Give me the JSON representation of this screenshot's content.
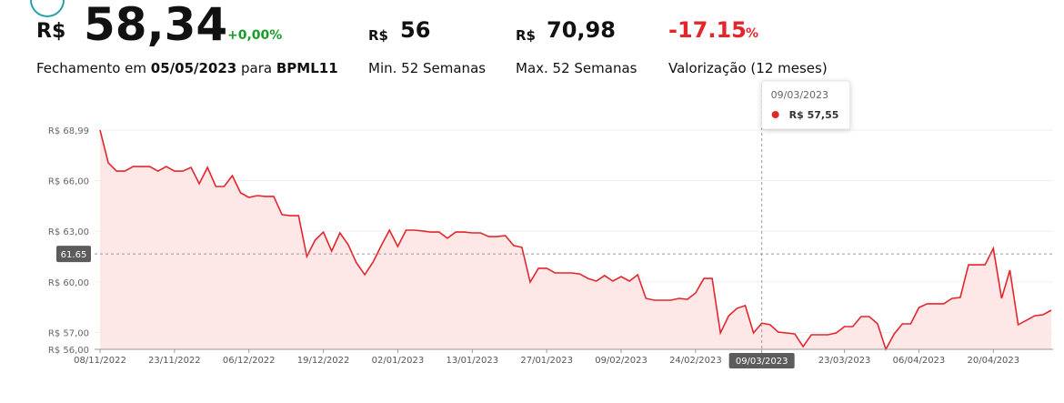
{
  "header": {
    "currency": "R$",
    "price": "58,34",
    "change": "+0,00%",
    "min_currency": "R$",
    "min_value": "56",
    "max_currency": "R$",
    "max_value": "70,98",
    "valuation": "-17.15",
    "valuation_unit": "%",
    "close_prefix": "Fechamento em",
    "close_date": "05/05/2023",
    "close_mid": "para",
    "ticker": "BPML11",
    "min_label": "Min. 52 Semanas",
    "max_label": "Max. 52 Semanas",
    "valuation_label": "Valorização (12 meses)"
  },
  "chart_data": {
    "type": "area",
    "color": "#e3262c",
    "fill": "#fde7e7",
    "grid": true,
    "categories": [
      "08/11/2022",
      null,
      null,
      null,
      null,
      null,
      null,
      null,
      null,
      "23/11/2022",
      null,
      null,
      null,
      null,
      null,
      null,
      null,
      null,
      "06/12/2022",
      null,
      null,
      null,
      null,
      null,
      null,
      null,
      null,
      "19/12/2022",
      null,
      null,
      null,
      null,
      null,
      null,
      null,
      null,
      "02/01/2023",
      null,
      null,
      null,
      null,
      null,
      null,
      null,
      null,
      "13/01/2023",
      null,
      null,
      null,
      null,
      null,
      null,
      null,
      null,
      "27/01/2023",
      null,
      null,
      null,
      null,
      null,
      null,
      null,
      null,
      "09/02/2023",
      null,
      null,
      null,
      null,
      null,
      null,
      null,
      null,
      "24/02/2023",
      null,
      null,
      null,
      null,
      null,
      null,
      null,
      "09/03/2023",
      null,
      null,
      null,
      null,
      null,
      null,
      null,
      null,
      null,
      "23/03/2023",
      null,
      null,
      null,
      null,
      null,
      null,
      null,
      null,
      "06/04/2023",
      null,
      null,
      null,
      null,
      null,
      null,
      null,
      null,
      "20/04/2023",
      null,
      null,
      null,
      null,
      null,
      null,
      null
    ],
    "values": [
      68.99,
      67.05,
      66.56,
      66.56,
      66.83,
      66.83,
      66.83,
      66.56,
      66.83,
      66.56,
      66.56,
      66.78,
      65.81,
      66.78,
      65.65,
      65.65,
      66.29,
      65.27,
      65.0,
      65.11,
      65.06,
      65.06,
      63.98,
      63.92,
      63.92,
      61.5,
      62.47,
      62.95,
      61.82,
      62.9,
      62.2,
      61.12,
      60.42,
      61.17,
      62.15,
      63.06,
      62.09,
      63.06,
      63.06,
      63.01,
      62.95,
      62.95,
      62.58,
      62.95,
      62.95,
      62.9,
      62.9,
      62.68,
      62.68,
      62.74,
      62.15,
      62.04,
      59.99,
      60.8,
      60.8,
      60.53,
      60.53,
      60.53,
      60.47,
      60.2,
      60.04,
      60.37,
      60.04,
      60.31,
      60.04,
      60.42,
      59.02,
      58.91,
      58.91,
      58.91,
      59.02,
      58.96,
      59.34,
      60.2,
      60.2,
      56.97,
      57.99,
      58.43,
      58.59,
      56.97,
      57.55,
      57.46,
      57.02,
      56.97,
      56.91,
      56.16,
      56.86,
      56.86,
      56.86,
      56.97,
      57.35,
      57.35,
      57.94,
      57.94,
      57.51,
      56.0,
      56.91,
      57.51,
      57.51,
      58.48,
      58.7,
      58.7,
      58.7,
      59.02,
      59.07,
      61.01,
      61.01,
      61.01,
      61.98,
      59.02,
      60.69,
      57.46,
      57.72,
      57.99,
      58.05,
      58.32
    ],
    "ylim": [
      56,
      68.99
    ],
    "yticks": [
      {
        "value": 68.99,
        "label": "R$ 68,99"
      },
      {
        "value": 66,
        "label": "R$ 66,00"
      },
      {
        "value": 63,
        "label": "R$ 63,00"
      },
      {
        "value": 60,
        "label": "R$ 60,00"
      },
      {
        "value": 57,
        "label": "R$ 57,00"
      },
      {
        "value": 56,
        "label": "R$ 56,00"
      }
    ],
    "crosshair_y": 61.65,
    "tooltip": {
      "date": "09/03/2023",
      "value": 57.55,
      "label": "R$ 57,55"
    }
  }
}
